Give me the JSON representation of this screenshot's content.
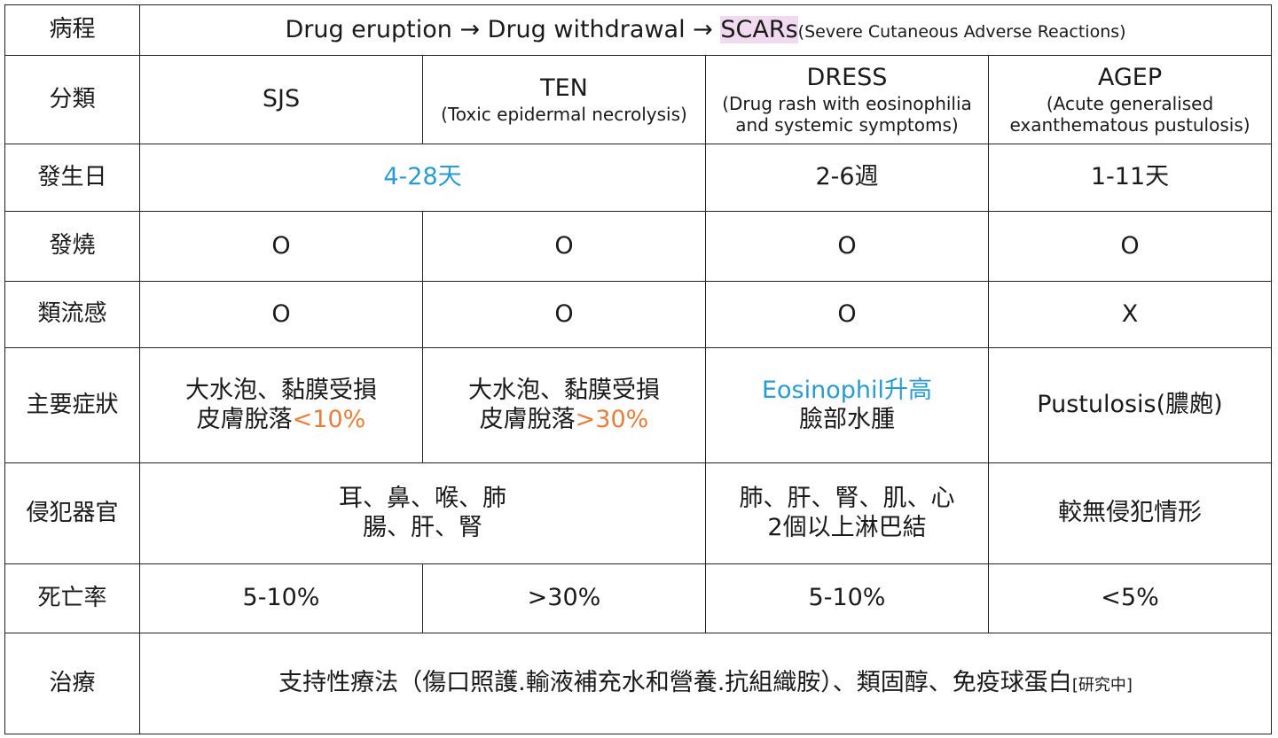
{
  "rows": {
    "course": {
      "label": "病程",
      "text_main": "Drug eruption → Drug withdrawal → ",
      "text_scars": "SCARs",
      "text_paren": "(Severe Cutaneous Adverse Reactions)"
    },
    "classification": {
      "label": "分類",
      "sjs": "SJS",
      "ten": "TEN",
      "ten_sub": "(Toxic epidermal necrolysis)",
      "dress": "DRESS",
      "dress_sub": "(Drug rash with eosinophilia and systemic symptoms)",
      "agep": "AGEP",
      "agep_sub": "(Acute generalised exanthematous pustulosis)"
    },
    "onset": {
      "label": "發生日",
      "sjs_ten": "4-28天",
      "dress": "2-6週",
      "agep": "1-11天"
    },
    "fever": {
      "label": "發燒",
      "sjs": "O",
      "ten": "O",
      "dress": "O",
      "agep": "O"
    },
    "flu": {
      "label": "類流感",
      "sjs": "O",
      "ten": "O",
      "dress": "O",
      "agep": "X"
    },
    "symptoms": {
      "label": "主要症狀",
      "sjs_line1": "大水泡、黏膜受損",
      "sjs_line2a": "皮膚脫落",
      "sjs_line2b": "<10%",
      "ten_line1": "大水泡、黏膜受損",
      "ten_line2a": "皮膚脫落",
      "ten_line2b": ">30%",
      "dress_line1": "Eosinophil升高",
      "dress_line2": "臉部水腫",
      "agep": "Pustulosis(膿皰)"
    },
    "organs": {
      "label": "侵犯器官",
      "sjs_ten_line1": "耳、鼻、喉、肺",
      "sjs_ten_line2": "腸、肝、腎",
      "dress_line1": "肺、肝、腎、肌、心",
      "dress_line2": "2個以上淋巴結",
      "agep": "較無侵犯情形"
    },
    "mortality": {
      "label": "死亡率",
      "sjs": "5-10%",
      "ten": ">30%",
      "dress": "5-10%",
      "agep": "<5%"
    },
    "treatment": {
      "label": "治療",
      "text": "支持性療法（傷口照護.輸液補充水和營養.抗組織胺）、類固醇、免疫球蛋白",
      "note": "[研究中]"
    }
  },
  "colors": {
    "blue": "#2a9bd1",
    "orange": "#e87e3c",
    "highlight": "#f1d9ef",
    "border": "#222222"
  }
}
